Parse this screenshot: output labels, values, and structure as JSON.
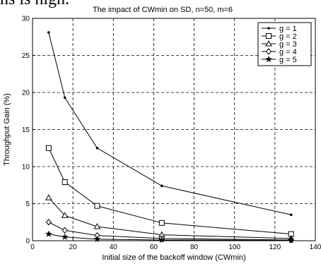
{
  "page": {
    "clipped_text": "ns is high."
  },
  "chart_data": {
    "type": "line",
    "title": "The impact of CWmin on SD, n=50, m=6",
    "xlabel": "Initial size of the backoff window (CWmin)",
    "ylabel": "Throughput Gain (%)",
    "xlim": [
      0,
      140
    ],
    "ylim": [
      0,
      30
    ],
    "x_ticks": [
      0,
      20,
      40,
      60,
      80,
      100,
      120,
      140
    ],
    "y_ticks": [
      0,
      5,
      10,
      15,
      20,
      25,
      30
    ],
    "grid": true,
    "grid_style": "dashed",
    "legend_position": "top-right",
    "x": [
      8,
      16,
      32,
      64,
      128
    ],
    "series": [
      {
        "name": "g = 1",
        "marker": "dot",
        "values": [
          28.1,
          19.3,
          12.5,
          7.4,
          3.5
        ]
      },
      {
        "name": "g = 2",
        "marker": "square",
        "values": [
          12.5,
          7.9,
          4.7,
          2.4,
          0.9
        ]
      },
      {
        "name": "g = 3",
        "marker": "triangle",
        "values": [
          5.8,
          3.4,
          1.9,
          0.8,
          0.3
        ]
      },
      {
        "name": "g = 4",
        "marker": "diamond",
        "values": [
          2.5,
          1.4,
          0.7,
          0.3,
          0.1
        ]
      },
      {
        "name": "g = 5",
        "marker": "star",
        "values": [
          0.9,
          0.5,
          0.2,
          0.1,
          0.05
        ]
      }
    ]
  }
}
